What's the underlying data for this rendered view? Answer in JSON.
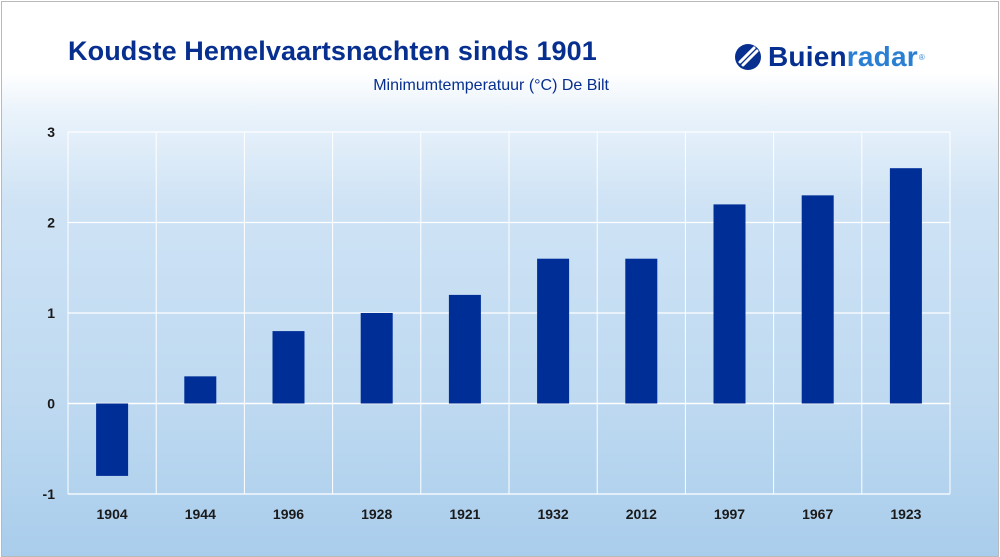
{
  "header": {
    "title": "Koudste Hemelvaartsnachten sinds 1901",
    "subtitle": "Minimumtemperatuur (°C) De Bilt"
  },
  "logo": {
    "text_main": "Buien",
    "text_accent": "radar",
    "registered_mark": "®",
    "icon": "buienradar-logo-icon"
  },
  "colors": {
    "bar": "#002e97",
    "title": "#072f8f",
    "grid": "#ffffff",
    "accent": "#2b7fd3"
  },
  "chart_data": {
    "type": "bar",
    "categories": [
      "1904",
      "1944",
      "1996",
      "1928",
      "1921",
      "1932",
      "2012",
      "1997",
      "1967",
      "1923"
    ],
    "series": [
      {
        "values": [
          -0.8,
          0.3,
          0.8,
          1.0,
          1.2,
          1.6,
          1.6,
          2.2,
          2.3,
          2.6
        ]
      }
    ],
    "title": "Koudste Hemelvaartsnachten sinds 1901",
    "subtitle": "Minimumtemperatuur (°C) De Bilt",
    "xlabel": "",
    "ylabel": "",
    "ylim": [
      -1,
      3
    ],
    "yticks": [
      -1,
      0,
      1,
      2,
      3
    ],
    "grid": true,
    "legend": "none"
  }
}
